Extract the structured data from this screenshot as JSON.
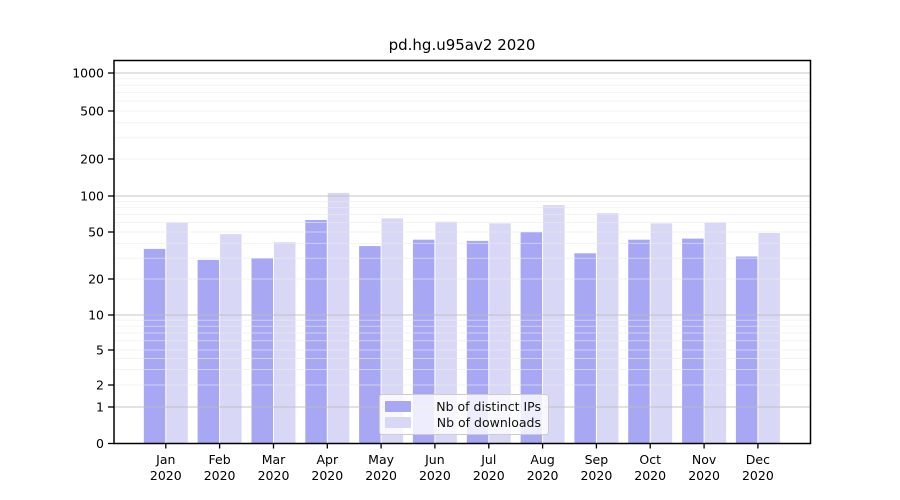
{
  "figure": {
    "title": "pd.hg.u95av2 2020"
  },
  "legend": {
    "items": [
      {
        "label": "Nb of distinct IPs",
        "color": "#a7a7f4"
      },
      {
        "label": "Nb of downloads",
        "color": "#d8d8f6"
      }
    ]
  },
  "chart_data": {
    "type": "bar",
    "title": "pd.hg.u95av2 2020",
    "x_tick_labels": [
      "Jan 2020",
      "Feb 2020",
      "Mar 2020",
      "Apr 2020",
      "May 2020",
      "Jun 2020",
      "Jul 2020",
      "Aug 2020",
      "Sep 2020",
      "Oct 2020",
      "Nov 2020",
      "Dec 2020"
    ],
    "series": [
      {
        "name": "Nb of distinct IPs",
        "color": "#a7a7f4",
        "values": [
          36,
          29,
          30,
          63,
          38,
          43,
          42,
          50,
          33,
          43,
          44,
          31
        ]
      },
      {
        "name": "Nb of downloads",
        "color": "#d8d8f6",
        "values": [
          60,
          48,
          41,
          106,
          65,
          61,
          59,
          84,
          72,
          59,
          60,
          49
        ]
      }
    ],
    "y_ticks": [
      0,
      1,
      2,
      5,
      10,
      20,
      50,
      100,
      200,
      500,
      1000
    ],
    "y_scale": "symlog",
    "ylim": [
      0,
      1300
    ],
    "grid": "horizontal major + faint minors",
    "legend_position": "lower center",
    "colors": {
      "axis": "#000000",
      "grid_major": "#bbbbbb",
      "grid_minor": "#ebebeb"
    }
  }
}
